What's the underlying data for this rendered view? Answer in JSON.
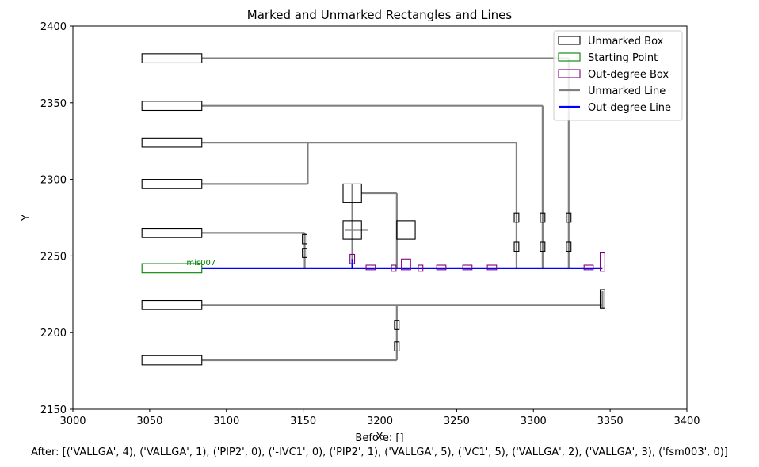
{
  "chart_data": {
    "type": "diagram-plot",
    "title": "Marked and Unmarked Rectangles and Lines",
    "xlabel": "X",
    "ylabel": "Y",
    "xlim": [
      3000,
      3400
    ],
    "ylim": [
      2150,
      2400
    ],
    "xticks": [
      3000,
      3050,
      3100,
      3150,
      3200,
      3250,
      3300,
      3350,
      3400
    ],
    "yticks": [
      2150,
      2200,
      2250,
      2300,
      2350,
      2400
    ],
    "grid": false,
    "legend_position": "top-right",
    "legend": [
      {
        "label": "Unmarked Box",
        "kind": "box",
        "color": "#000000"
      },
      {
        "label": "Starting Point",
        "kind": "box",
        "color": "#008000"
      },
      {
        "label": "Out-degree Box",
        "kind": "box",
        "color": "#800080"
      },
      {
        "label": "Unmarked Line",
        "kind": "line",
        "color": "#808080"
      },
      {
        "label": "Out-degree Line",
        "kind": "line",
        "color": "#0000ff"
      }
    ],
    "annotations": [
      {
        "text": "mis007",
        "x": 3074,
        "y": 2244,
        "color": "#008000"
      }
    ],
    "unmarked_lines": [
      [
        [
          3084,
          2379
        ],
        [
          3323,
          2379
        ]
      ],
      [
        [
          3323,
          2379
        ],
        [
          3323,
          2242
        ]
      ],
      [
        [
          3084,
          2348
        ],
        [
          3306,
          2348
        ]
      ],
      [
        [
          3306,
          2348
        ],
        [
          3306,
          2242
        ]
      ],
      [
        [
          3084,
          2324
        ],
        [
          3289,
          2324
        ]
      ],
      [
        [
          3289,
          2324
        ],
        [
          3289,
          2242
        ]
      ],
      [
        [
          3153,
          2324
        ],
        [
          3153,
          2297
        ]
      ],
      [
        [
          3084,
          2297
        ],
        [
          3153,
          2297
        ]
      ],
      [
        [
          3084,
          2265
        ],
        [
          3151,
          2265
        ]
      ],
      [
        [
          3151,
          2265
        ],
        [
          3151,
          2242
        ]
      ],
      [
        [
          3182,
          2297
        ],
        [
          3182,
          2242
        ]
      ],
      [
        [
          3188,
          2291
        ],
        [
          3211,
          2291
        ]
      ],
      [
        [
          3211,
          2291
        ],
        [
          3211,
          2242
        ]
      ],
      [
        [
          3177,
          2267
        ],
        [
          3192,
          2267
        ]
      ],
      [
        [
          3084,
          2218
        ],
        [
          3345,
          2218
        ]
      ],
      [
        [
          3345,
          2227
        ],
        [
          3345,
          2216
        ]
      ],
      [
        [
          3084,
          2182
        ],
        [
          3211,
          2182
        ]
      ],
      [
        [
          3211,
          2218
        ],
        [
          3211,
          2182
        ]
      ]
    ],
    "outdegree_lines": [
      [
        [
          3084,
          2242
        ],
        [
          3345,
          2242
        ]
      ],
      [
        [
          3182,
          2248
        ],
        [
          3182,
          2242
        ]
      ]
    ],
    "unmarked_boxes": [
      {
        "x": 3045,
        "y": 2376,
        "w": 39,
        "h": 6
      },
      {
        "x": 3045,
        "y": 2345,
        "w": 39,
        "h": 6
      },
      {
        "x": 3045,
        "y": 2321,
        "w": 39,
        "h": 6
      },
      {
        "x": 3045,
        "y": 2294,
        "w": 39,
        "h": 6
      },
      {
        "x": 3045,
        "y": 2262,
        "w": 39,
        "h": 6
      },
      {
        "x": 3045,
        "y": 2215,
        "w": 39,
        "h": 6
      },
      {
        "x": 3045,
        "y": 2179,
        "w": 39,
        "h": 6
      },
      {
        "x": 3176,
        "y": 2285,
        "w": 12,
        "h": 12
      },
      {
        "x": 3176,
        "y": 2261,
        "w": 12,
        "h": 12
      },
      {
        "x": 3211,
        "y": 2261,
        "w": 12,
        "h": 12
      },
      {
        "x": 3149.5,
        "y": 2258,
        "w": 3,
        "h": 6
      },
      {
        "x": 3149.5,
        "y": 2249,
        "w": 3,
        "h": 6
      },
      {
        "x": 3287.5,
        "y": 2272,
        "w": 3,
        "h": 6
      },
      {
        "x": 3287.5,
        "y": 2253,
        "w": 3,
        "h": 6
      },
      {
        "x": 3304.5,
        "y": 2272,
        "w": 3,
        "h": 6
      },
      {
        "x": 3304.5,
        "y": 2253,
        "w": 3,
        "h": 6
      },
      {
        "x": 3321.5,
        "y": 2272,
        "w": 3,
        "h": 6
      },
      {
        "x": 3321.5,
        "y": 2253,
        "w": 3,
        "h": 6
      },
      {
        "x": 3343.5,
        "y": 2216,
        "w": 3,
        "h": 12
      },
      {
        "x": 3209.5,
        "y": 2202,
        "w": 3,
        "h": 6
      },
      {
        "x": 3209.5,
        "y": 2188,
        "w": 3,
        "h": 6
      }
    ],
    "start_boxes": [
      {
        "x": 3045,
        "y": 2239,
        "w": 39,
        "h": 6
      }
    ],
    "outdegree_boxes": [
      {
        "x": 3180.5,
        "y": 2245,
        "w": 3,
        "h": 6
      },
      {
        "x": 3191,
        "y": 2241,
        "w": 6,
        "h": 3
      },
      {
        "x": 3207.5,
        "y": 2240,
        "w": 3,
        "h": 4
      },
      {
        "x": 3214,
        "y": 2241,
        "w": 6,
        "h": 7
      },
      {
        "x": 3225,
        "y": 2240,
        "w": 3,
        "h": 4
      },
      {
        "x": 3237,
        "y": 2241,
        "w": 6,
        "h": 3
      },
      {
        "x": 3254,
        "y": 2241,
        "w": 6,
        "h": 3
      },
      {
        "x": 3270,
        "y": 2241,
        "w": 6,
        "h": 3
      },
      {
        "x": 3333,
        "y": 2241,
        "w": 6,
        "h": 3
      },
      {
        "x": 3343.5,
        "y": 2240,
        "w": 3,
        "h": 12
      }
    ]
  },
  "captions": {
    "before": "Before: []",
    "after": "After: [('VALLGA', 4), ('VALLGA', 1), ('PIP2', 0), ('-IVC1', 0), ('PIP2', 1), ('VALLGA', 5), ('VC1', 5), ('VALLGA', 2), ('VALLGA', 3), ('fsm003', 0)]"
  }
}
